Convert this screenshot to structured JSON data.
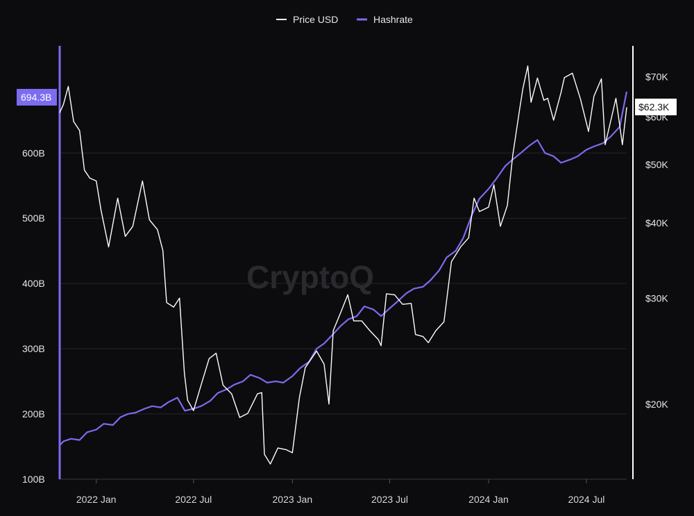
{
  "colors": {
    "background": "#0c0c0e",
    "hashrate": "#7b6cf0",
    "price": "#ffffff",
    "grid": "#26262b",
    "left_axis": "#7b6cf0",
    "right_axis": "#ffffff"
  },
  "legend": {
    "price_label": "Price USD",
    "hashrate_label": "Hashrate"
  },
  "watermark": "CryptoQ",
  "current_values": {
    "hashrate_badge": "694.3B",
    "price_badge": "$62.3K"
  },
  "chart_data": {
    "type": "line",
    "title": "",
    "x_labels": [
      "2022 Jan",
      "2022 Jul",
      "2023 Jan",
      "2023 Jul",
      "2024 Jan",
      "2024 Jul"
    ],
    "x_label_dates": [
      "2022-01-01",
      "2022-07-01",
      "2023-01-01",
      "2023-07-01",
      "2024-01-01",
      "2024-07-01"
    ],
    "x_range": [
      "2021-10-25",
      "2024-09-14"
    ],
    "y_left": {
      "label": "",
      "ticks": [
        "100B",
        "200B",
        "300B",
        "400B",
        "500B",
        "600B"
      ],
      "tick_values": [
        100,
        200,
        300,
        400,
        500,
        600
      ],
      "range": [
        100,
        760
      ],
      "unit": "B"
    },
    "y_right": {
      "label": "",
      "scale": "log",
      "ticks": [
        "$20K",
        "$30K",
        "$40K",
        "$50K",
        "$60K",
        "$70K"
      ],
      "tick_values": [
        20000,
        30000,
        40000,
        50000,
        60000,
        70000
      ],
      "range": [
        15000,
        78000
      ]
    },
    "grid": true,
    "legend_position": "top-center",
    "series": [
      {
        "name": "Hashrate",
        "axis": "left",
        "x": [
          "2021-10-25",
          "2021-11-01",
          "2021-11-15",
          "2021-12-01",
          "2021-12-15",
          "2022-01-01",
          "2022-01-15",
          "2022-02-01",
          "2022-02-15",
          "2022-03-01",
          "2022-03-15",
          "2022-04-01",
          "2022-04-15",
          "2022-05-01",
          "2022-05-15",
          "2022-06-01",
          "2022-06-15",
          "2022-07-01",
          "2022-07-15",
          "2022-08-01",
          "2022-08-15",
          "2022-09-01",
          "2022-09-15",
          "2022-10-01",
          "2022-10-15",
          "2022-11-01",
          "2022-11-15",
          "2022-12-01",
          "2022-12-15",
          "2023-01-01",
          "2023-01-15",
          "2023-02-01",
          "2023-02-15",
          "2023-03-01",
          "2023-03-15",
          "2023-04-01",
          "2023-04-15",
          "2023-05-01",
          "2023-05-15",
          "2023-06-01",
          "2023-06-15",
          "2023-07-01",
          "2023-07-15",
          "2023-08-01",
          "2023-08-15",
          "2023-09-01",
          "2023-09-15",
          "2023-10-01",
          "2023-10-15",
          "2023-11-01",
          "2023-11-15",
          "2023-12-01",
          "2023-12-15",
          "2024-01-01",
          "2024-01-15",
          "2024-02-01",
          "2024-02-15",
          "2024-03-01",
          "2024-03-15",
          "2024-04-01",
          "2024-04-15",
          "2024-05-01",
          "2024-05-15",
          "2024-06-01",
          "2024-06-15",
          "2024-07-01",
          "2024-07-15",
          "2024-08-01",
          "2024-08-15",
          "2024-09-01",
          "2024-09-14"
        ],
        "values": [
          152,
          158,
          162,
          160,
          172,
          176,
          185,
          183,
          195,
          200,
          202,
          208,
          212,
          210,
          218,
          225,
          205,
          208,
          212,
          220,
          232,
          238,
          245,
          250,
          260,
          255,
          248,
          250,
          248,
          258,
          270,
          280,
          300,
          308,
          320,
          335,
          345,
          350,
          365,
          360,
          350,
          362,
          372,
          385,
          392,
          395,
          405,
          420,
          440,
          450,
          470,
          505,
          530,
          545,
          560,
          580,
          590,
          600,
          610,
          620,
          600,
          595,
          585,
          590,
          595,
          605,
          610,
          615,
          625,
          640,
          694
        ]
      },
      {
        "name": "Price USD",
        "axis": "right",
        "x": [
          "2021-10-25",
          "2021-11-01",
          "2021-11-10",
          "2021-11-20",
          "2021-12-01",
          "2021-12-10",
          "2021-12-20",
          "2022-01-01",
          "2022-01-10",
          "2022-01-24",
          "2022-02-10",
          "2022-02-24",
          "2022-03-10",
          "2022-03-28",
          "2022-04-10",
          "2022-04-25",
          "2022-05-05",
          "2022-05-12",
          "2022-05-25",
          "2022-06-05",
          "2022-06-14",
          "2022-06-20",
          "2022-07-01",
          "2022-07-15",
          "2022-07-30",
          "2022-08-12",
          "2022-08-25",
          "2022-09-10",
          "2022-09-25",
          "2022-10-10",
          "2022-10-28",
          "2022-11-05",
          "2022-11-10",
          "2022-11-21",
          "2022-12-05",
          "2022-12-20",
          "2023-01-01",
          "2023-01-14",
          "2023-01-25",
          "2023-02-15",
          "2023-03-01",
          "2023-03-10",
          "2023-03-18",
          "2023-04-01",
          "2023-04-14",
          "2023-04-25",
          "2023-05-10",
          "2023-05-25",
          "2023-06-10",
          "2023-06-15",
          "2023-06-25",
          "2023-07-10",
          "2023-07-25",
          "2023-08-10",
          "2023-08-18",
          "2023-09-01",
          "2023-09-11",
          "2023-09-25",
          "2023-10-10",
          "2023-10-24",
          "2023-11-10",
          "2023-11-25",
          "2023-12-05",
          "2023-12-15",
          "2024-01-01",
          "2024-01-11",
          "2024-01-23",
          "2024-02-05",
          "2024-02-15",
          "2024-02-28",
          "2024-03-05",
          "2024-03-14",
          "2024-03-20",
          "2024-04-01",
          "2024-04-13",
          "2024-04-20",
          "2024-05-01",
          "2024-05-15",
          "2024-05-21",
          "2024-06-05",
          "2024-06-20",
          "2024-07-05",
          "2024-07-15",
          "2024-07-29",
          "2024-08-05",
          "2024-08-15",
          "2024-08-25",
          "2024-09-06",
          "2024-09-14"
        ],
        "values": [
          61000,
          63000,
          67500,
          59000,
          57000,
          49000,
          47500,
          47000,
          42000,
          36500,
          44000,
          38000,
          39500,
          47000,
          40500,
          39000,
          36000,
          29500,
          29000,
          30000,
          22500,
          20300,
          19500,
          21500,
          23800,
          24300,
          21500,
          20800,
          19000,
          19300,
          20800,
          20900,
          16500,
          15900,
          16900,
          16800,
          16600,
          20500,
          23000,
          24500,
          23300,
          20000,
          26500,
          28400,
          30400,
          27500,
          27500,
          26500,
          25600,
          25000,
          30500,
          30400,
          29300,
          29400,
          26100,
          25900,
          25300,
          26500,
          27400,
          34500,
          36500,
          37800,
          44000,
          41800,
          42500,
          46300,
          39500,
          42800,
          51800,
          62000,
          67000,
          73000,
          63500,
          69700,
          64000,
          64500,
          59300,
          66000,
          69800,
          71000,
          64300,
          56800,
          65000,
          69500,
          54000,
          59000,
          64500,
          54000,
          62300
        ]
      }
    ]
  }
}
